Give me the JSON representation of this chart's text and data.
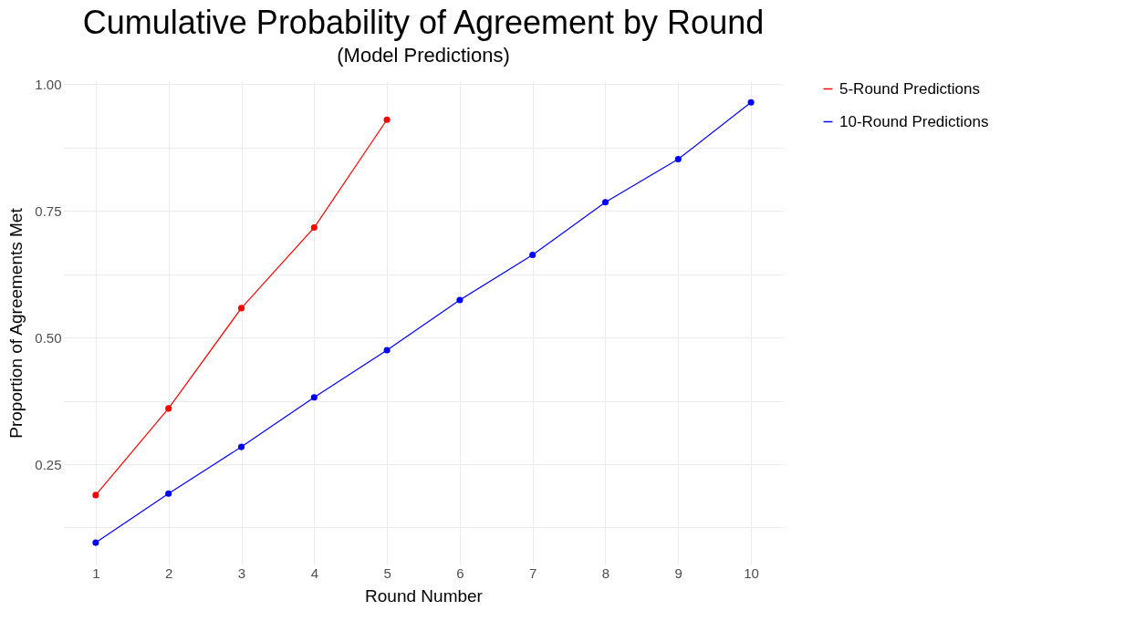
{
  "chart_data": {
    "type": "line",
    "title": "Cumulative Probability of Agreement by Round",
    "subtitle": "(Model Predictions)",
    "xlabel": "Round Number",
    "ylabel": "Proportion of Agreements Met",
    "series": [
      {
        "name": "5-Round Predictions",
        "color": "#ff0000",
        "x": [
          1,
          2,
          3,
          4,
          5
        ],
        "values": [
          0.189,
          0.36,
          0.558,
          0.717,
          0.93
        ]
      },
      {
        "name": "10-Round Predictions",
        "color": "#0000ff",
        "x": [
          1,
          2,
          3,
          4,
          5,
          6,
          7,
          8,
          9,
          10
        ],
        "values": [
          0.095,
          0.192,
          0.284,
          0.382,
          0.475,
          0.574,
          0.663,
          0.767,
          0.852,
          0.964
        ]
      }
    ],
    "xlim": [
      0.55,
      10.45
    ],
    "xticks": [
      1,
      2,
      3,
      4,
      5,
      6,
      7,
      8,
      9,
      10
    ],
    "ylim": [
      0.052,
      1.006
    ],
    "yticks": [
      {
        "value": 0.125,
        "label": null
      },
      {
        "value": 0.25,
        "label": "0.25"
      },
      {
        "value": 0.375,
        "label": null
      },
      {
        "value": 0.5,
        "label": "0.50"
      },
      {
        "value": 0.625,
        "label": null
      },
      {
        "value": 0.75,
        "label": "0.75"
      },
      {
        "value": 0.875,
        "label": null
      },
      {
        "value": 1,
        "label": "1.00"
      }
    ],
    "grid": true,
    "legend": "right",
    "marker": "circle",
    "line_style": "solid"
  }
}
